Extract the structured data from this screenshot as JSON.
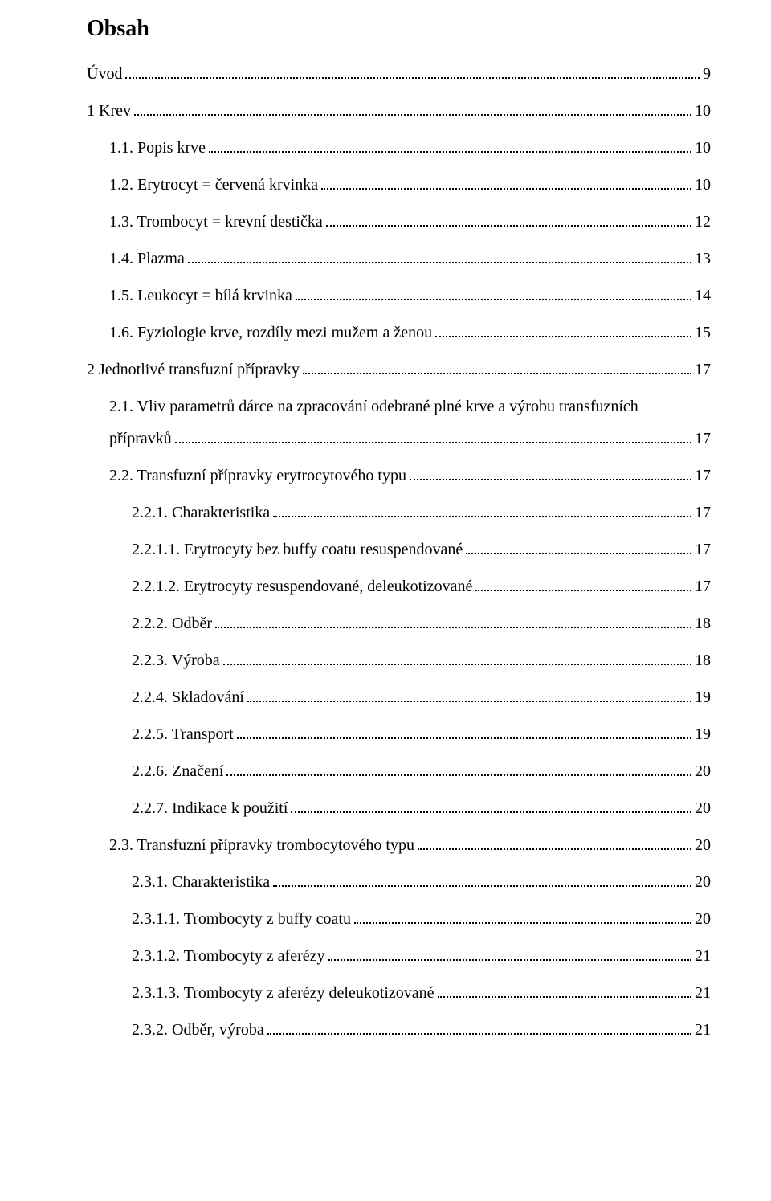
{
  "title": "Obsah",
  "entries": [
    {
      "indent": 0,
      "label": "Úvod",
      "page": "9"
    },
    {
      "indent": 0,
      "label": "1 Krev",
      "page": "10"
    },
    {
      "indent": 1,
      "label": "1.1. Popis krve",
      "page": "10"
    },
    {
      "indent": 1,
      "label": "1.2. Erytrocyt = červená krvinka",
      "page": "10"
    },
    {
      "indent": 1,
      "label": "1.3. Trombocyt = krevní destička",
      "page": "12"
    },
    {
      "indent": 1,
      "label": "1.4. Plazma",
      "page": "13"
    },
    {
      "indent": 1,
      "label": "1.5. Leukocyt = bílá krvinka",
      "page": "14"
    },
    {
      "indent": 1,
      "label": "1.6. Fyziologie krve, rozdíly mezi mužem a ženou",
      "page": "15"
    },
    {
      "indent": 0,
      "label": "2 Jednotlivé transfuzní přípravky",
      "page": "17"
    },
    {
      "indent": 1,
      "label": "2.1. Vliv parametrů dárce na zpracování odebrané plné krve a výrobu transfuzních",
      "label2": "přípravků",
      "page": "17",
      "multiline": true
    },
    {
      "indent": 1,
      "label": "2.2. Transfuzní přípravky erytrocytového typu",
      "page": "17"
    },
    {
      "indent": 2,
      "label": "2.2.1. Charakteristika",
      "page": "17"
    },
    {
      "indent": 2,
      "label": "2.2.1.1. Erytrocyty bez buffy coatu resuspendované",
      "page": "17"
    },
    {
      "indent": 2,
      "label": "2.2.1.2. Erytrocyty resuspendované, deleukotizované",
      "page": "17"
    },
    {
      "indent": 2,
      "label": "2.2.2. Odběr",
      "page": "18"
    },
    {
      "indent": 2,
      "label": "2.2.3. Výroba",
      "page": "18"
    },
    {
      "indent": 2,
      "label": "2.2.4. Skladování",
      "page": "19"
    },
    {
      "indent": 2,
      "label": "2.2.5. Transport",
      "page": "19"
    },
    {
      "indent": 2,
      "label": "2.2.6. Značení",
      "page": "20"
    },
    {
      "indent": 2,
      "label": "2.2.7. Indikace k použití",
      "page": "20"
    },
    {
      "indent": 1,
      "label": "2.3. Transfuzní přípravky trombocytového typu",
      "page": "20"
    },
    {
      "indent": 2,
      "label": "2.3.1. Charakteristika",
      "page": "20"
    },
    {
      "indent": 2,
      "label": "2.3.1.1. Trombocyty z buffy coatu",
      "page": "20"
    },
    {
      "indent": 2,
      "label": "2.3.1.2. Trombocyty z aferézy",
      "page": "21"
    },
    {
      "indent": 2,
      "label": "2.3.1.3. Trombocyty z aferézy deleukotizované",
      "page": "21"
    },
    {
      "indent": 2,
      "label": "2.3.2. Odběr, výroba",
      "page": "21"
    }
  ]
}
